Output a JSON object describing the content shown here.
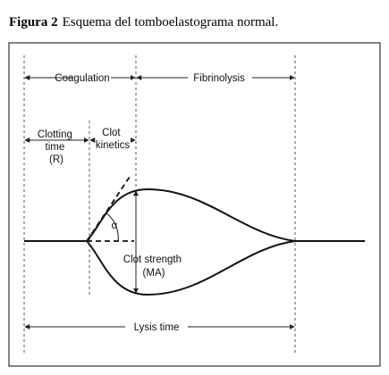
{
  "caption": {
    "label": "Figura 2",
    "text": "Esquema del tomboelastograma normal."
  },
  "labels": {
    "coagulation": "Coagulation",
    "fibrinolysis": "Fibrinolysis",
    "clotting_time": [
      "Clotting",
      "time",
      "(R)"
    ],
    "clot_kinetics": [
      "Clot",
      "kinetics"
    ],
    "alpha": "α",
    "clot_strength": [
      "Clot strength",
      "(MA)"
    ],
    "lysis_time": "Lysis time"
  }
}
